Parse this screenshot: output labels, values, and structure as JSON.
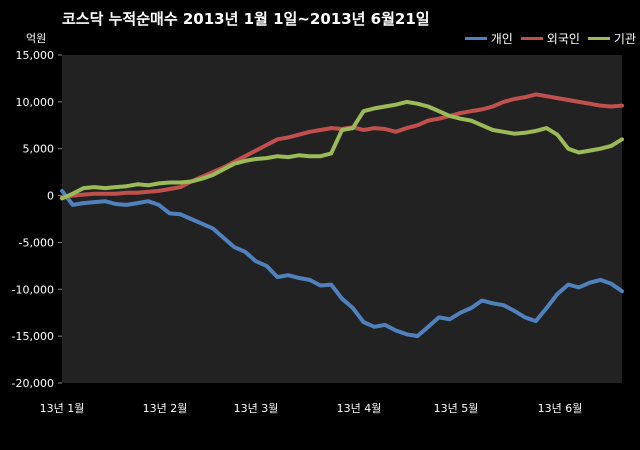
{
  "chart_data": {
    "type": "line",
    "title": "코스닥  누적순매수 2013년 1월 1일~2013년 6월21일",
    "ylabel": "억원",
    "ylim": [
      -20000,
      15000
    ],
    "yticks": [
      "15,000",
      "10,000",
      "5,000",
      "0",
      "-5,000",
      "-10,000",
      "-15,000",
      "-20,000"
    ],
    "ytick_values": [
      15000,
      10000,
      5000,
      0,
      -5000,
      -10000,
      -15000,
      -20000
    ],
    "xticks": [
      "13년 1월",
      "13년 2월",
      "13년 3월",
      "13년 4월",
      "13년 5월",
      "13년 6월"
    ],
    "grid": false,
    "legend": "top-right",
    "series": [
      {
        "name": "개인",
        "color": "#4F81BD",
        "values": [
          500,
          -1000,
          -800,
          -700,
          -600,
          -900,
          -1000,
          -800,
          -600,
          -1000,
          -1900,
          -2000,
          -2500,
          -3000,
          -3500,
          -4500,
          -5500,
          -6000,
          -7000,
          -7500,
          -8700,
          -8500,
          -8800,
          -9000,
          -9600,
          -9500,
          -11000,
          -12000,
          -13500,
          -14000,
          -13800,
          -14400,
          -14800,
          -15000,
          -14000,
          -13000,
          -13200,
          -12500,
          -12000,
          -11200,
          -11500,
          -11700,
          -12300,
          -13000,
          -13400,
          -12000,
          -10500,
          -9500,
          -9800,
          -9300,
          -9000,
          -9400,
          -10200
        ]
      },
      {
        "name": "외국인",
        "color": "#C0504D",
        "values": [
          -200,
          0,
          100,
          200,
          200,
          200,
          300,
          300,
          400,
          500,
          700,
          900,
          1500,
          2000,
          2500,
          3000,
          3600,
          4200,
          4800,
          5400,
          6000,
          6200,
          6500,
          6800,
          7000,
          7200,
          7100,
          7300,
          7000,
          7200,
          7100,
          6800,
          7200,
          7500,
          8000,
          8200,
          8500,
          8800,
          9000,
          9200,
          9500,
          10000,
          10300,
          10500,
          10800,
          10600,
          10400,
          10200,
          10000,
          9800,
          9600,
          9500,
          9600
        ]
      },
      {
        "name": "기관",
        "color": "#9BBB59",
        "values": [
          -300,
          200,
          800,
          900,
          800,
          900,
          1000,
          1200,
          1100,
          1300,
          1400,
          1400,
          1500,
          1800,
          2200,
          2800,
          3400,
          3700,
          3900,
          4000,
          4200,
          4100,
          4300,
          4200,
          4200,
          4500,
          7000,
          7200,
          9000,
          9300,
          9500,
          9700,
          10000,
          9800,
          9500,
          9000,
          8500,
          8200,
          8000,
          7500,
          7000,
          6800,
          6600,
          6700,
          6900,
          7200,
          6500,
          5000,
          4600,
          4800,
          5000,
          5300,
          6000
        ]
      }
    ]
  }
}
